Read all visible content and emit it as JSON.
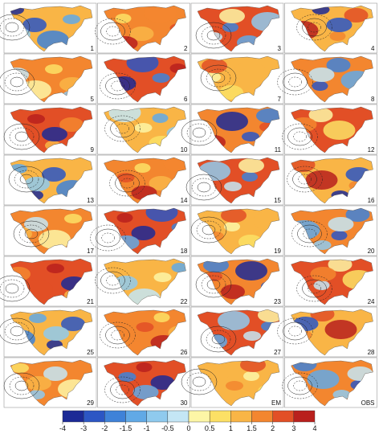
{
  "panels": [
    "1",
    "2",
    "3",
    "4",
    "5",
    "6",
    "7",
    "8",
    "9",
    "10",
    "11",
    "12",
    "13",
    "14",
    "15",
    "16",
    "17",
    "18",
    "19",
    "20",
    "21",
    "22",
    "23",
    "24",
    "25",
    "26",
    "27",
    "28",
    "29",
    "30",
    "EM",
    "OBS"
  ],
  "colorbar": {
    "ticks": [
      -4,
      -3,
      -2,
      -1.5,
      -1,
      -0.5,
      0,
      0.5,
      1,
      1.5,
      2,
      3,
      4
    ],
    "colors": [
      "#1c2a96",
      "#2c56c4",
      "#3f82d8",
      "#61a9e6",
      "#8fcaee",
      "#c4e6f5",
      "#fdf6a6",
      "#fce065",
      "#f9b546",
      "#f3862f",
      "#e24f26",
      "#b9201d"
    ]
  }
}
